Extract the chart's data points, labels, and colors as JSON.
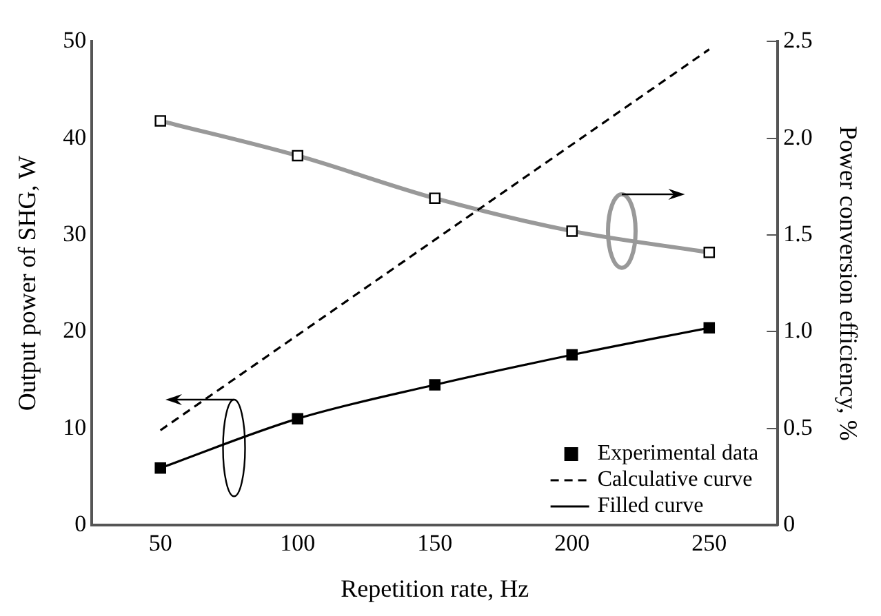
{
  "chart_data": {
    "type": "line",
    "xlabel": "Repetition rate, Hz",
    "ylabel": "Output power of SHG, W",
    "y2label": "Power conversion efficiency, %",
    "xlim": [
      25,
      275
    ],
    "xticks": [
      50,
      100,
      150,
      200,
      250
    ],
    "ylim": [
      0,
      50
    ],
    "yticks": [
      0,
      10,
      20,
      30,
      40,
      50
    ],
    "y2lim": [
      0,
      2.5
    ],
    "y2ticks": [
      0,
      0.5,
      {
        "value": 1,
        "label": "1.0"
      },
      1.5,
      {
        "value": 2,
        "label": "2.0"
      },
      2.5
    ],
    "grid": false,
    "legend": "bottom right",
    "series": [
      {
        "name": "Experimental data",
        "type": "scatter",
        "marker": "square",
        "color": "#000000",
        "x": [
          50,
          100,
          150,
          200,
          250
        ],
        "values": [
          5.9,
          11.0,
          14.5,
          17.6,
          20.4
        ]
      },
      {
        "name": "Calculative curve",
        "line_style": "dashed",
        "color": "#000000",
        "x": [
          50,
          250
        ],
        "values": [
          9.8,
          49.2
        ]
      },
      {
        "name": "Filled curve",
        "line_style": "solid",
        "color": "#000000",
        "x": [
          50,
          100,
          150,
          200,
          250
        ],
        "values": [
          5.9,
          11.0,
          14.5,
          17.6,
          20.4
        ]
      },
      {
        "type": "scatter",
        "marker": "square",
        "axis": "y2",
        "color": "#ffffff",
        "x": [
          50,
          100,
          150,
          200,
          250
        ],
        "values": [
          2.09,
          1.91,
          1.69,
          1.52,
          1.41
        ]
      },
      {
        "line_style": "solid",
        "axis": "y2",
        "color": "#999999",
        "x": [
          50,
          100,
          150,
          200,
          250
        ],
        "values": [
          2.09,
          1.91,
          1.69,
          1.52,
          1.41
        ]
      }
    ]
  }
}
